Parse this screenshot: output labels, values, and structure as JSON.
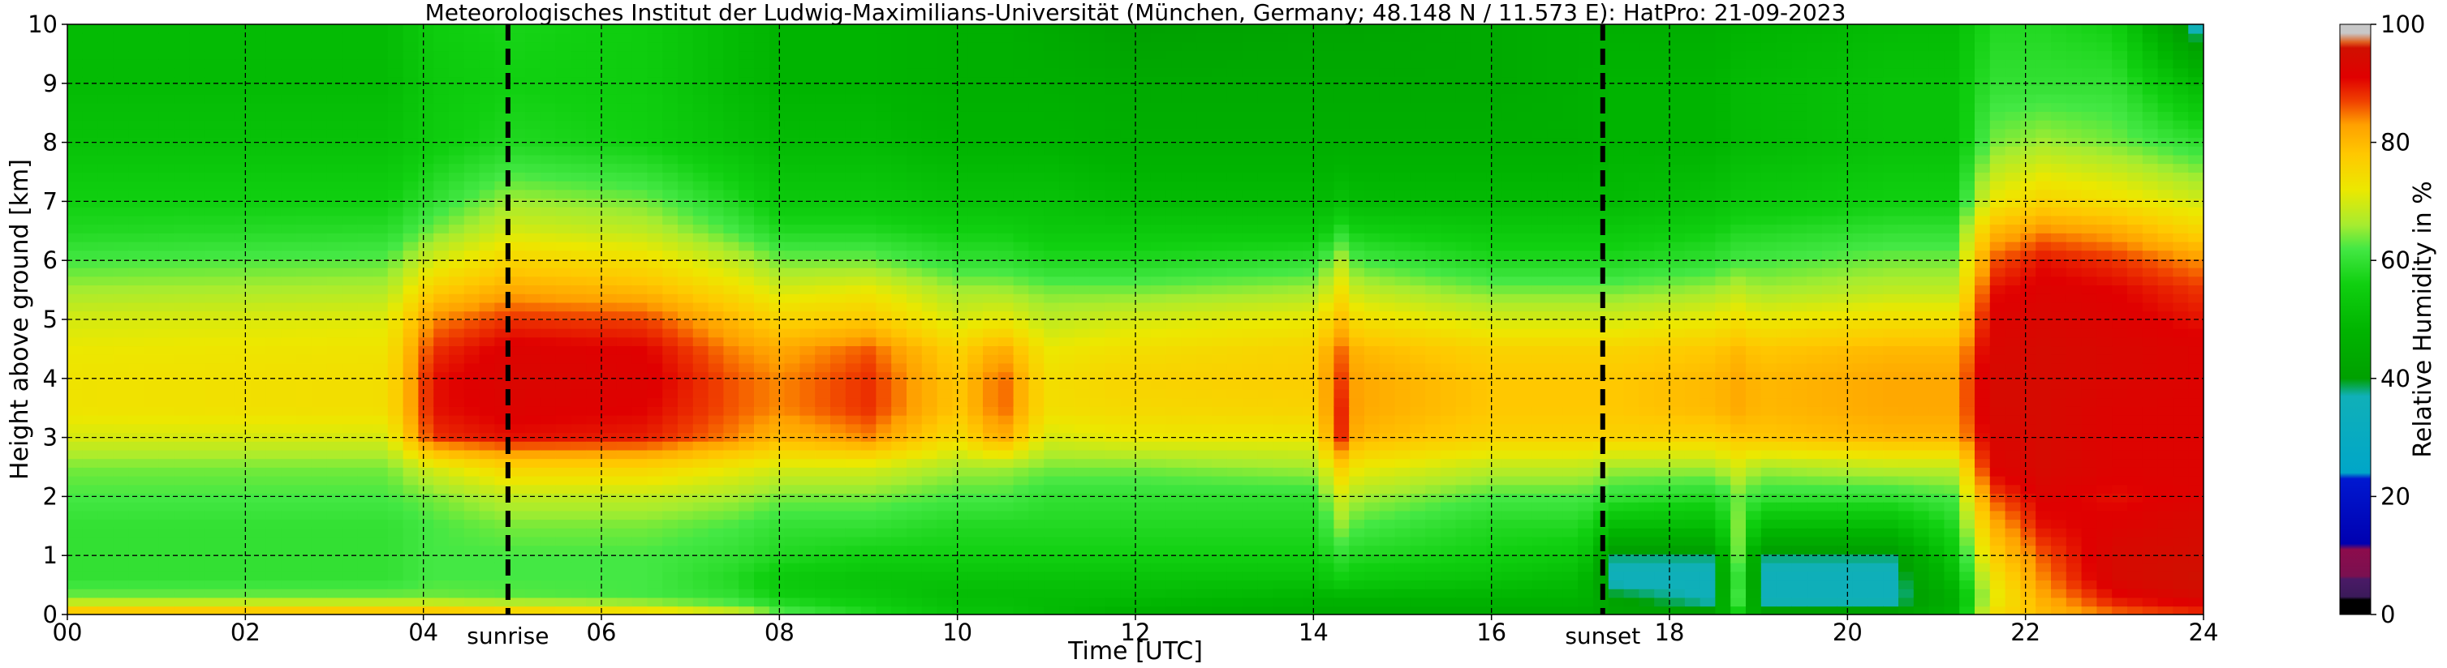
{
  "chart_data": {
    "type": "heatmap",
    "title": "Meteorologisches Institut der Ludwig-Maximilians-Universität (München, Germany; 48.148 N / 11.573 E):    HatPro: 21-09-2023",
    "xlabel": "Time [UTC]",
    "ylabel": "Height above ground [km]",
    "xlim": [
      0,
      24
    ],
    "ylim": [
      0,
      10
    ],
    "xticks": [
      "00",
      "02",
      "04",
      "06",
      "08",
      "10",
      "12",
      "14",
      "16",
      "18",
      "20",
      "22",
      "24"
    ],
    "yticks": [
      "0",
      "1",
      "2",
      "3",
      "4",
      "5",
      "6",
      "7",
      "8",
      "9",
      "10"
    ],
    "grid": true,
    "colorbar": {
      "label": "Relative Humidity in %",
      "ticks": [
        "0",
        "20",
        "40",
        "60",
        "80",
        "100"
      ],
      "range": [
        0,
        100
      ],
      "stops": [
        {
          "v": 0,
          "c": "#000000"
        },
        {
          "v": 2.5,
          "c": "#000000"
        },
        {
          "v": 3,
          "c": "#3b1a5a"
        },
        {
          "v": 6,
          "c": "#4a1a66"
        },
        {
          "v": 6.5,
          "c": "#7a1050"
        },
        {
          "v": 11,
          "c": "#8c0c4c"
        },
        {
          "v": 12,
          "c": "#0000b0"
        },
        {
          "v": 23,
          "c": "#0018d0"
        },
        {
          "v": 24,
          "c": "#00a6c8"
        },
        {
          "v": 37,
          "c": "#10b0b8"
        },
        {
          "v": 40,
          "c": "#00a000"
        },
        {
          "v": 48,
          "c": "#00b400"
        },
        {
          "v": 56,
          "c": "#10d010"
        },
        {
          "v": 62,
          "c": "#44e844"
        },
        {
          "v": 66,
          "c": "#a6ec30"
        },
        {
          "v": 72,
          "c": "#ece800"
        },
        {
          "v": 78,
          "c": "#ffc800"
        },
        {
          "v": 83,
          "c": "#ffa000"
        },
        {
          "v": 87,
          "c": "#f04000"
        },
        {
          "v": 91,
          "c": "#e00000"
        },
        {
          "v": 96,
          "c": "#d01000"
        },
        {
          "v": 97,
          "c": "#e06020"
        },
        {
          "v": 98.5,
          "c": "#c8c8c8"
        },
        {
          "v": 100,
          "c": "#c8c8c8"
        }
      ]
    },
    "events": [
      {
        "label": "sunrise",
        "time": 4.95
      },
      {
        "label": "sunset",
        "time": 17.25
      }
    ],
    "time_nodes": [
      0,
      3.6,
      4.1,
      5,
      6.5,
      7.5,
      8,
      9,
      10,
      10.5,
      11,
      12,
      14,
      14.2,
      14.35,
      14.5,
      16,
      17,
      17.4,
      18.5,
      18.8,
      19.0,
      20.5,
      21.2,
      21.6,
      22.2,
      23,
      23.9,
      24
    ],
    "height_nodes": [
      0,
      0.15,
      0.3,
      0.6,
      1,
      1.5,
      2,
      2.5,
      3,
      3.5,
      4,
      4.5,
      5,
      5.5,
      6,
      6.5,
      7,
      8,
      9,
      10
    ],
    "rh_profiles": [
      [
        82,
        72,
        64,
        60,
        60,
        60,
        62,
        64,
        70,
        73,
        73,
        72,
        70,
        66,
        62,
        58,
        56,
        52,
        50,
        50
      ],
      [
        82,
        72,
        64,
        60,
        60,
        60,
        62,
        64,
        70,
        74,
        74,
        73,
        71,
        67,
        63,
        59,
        56,
        52,
        50,
        50
      ],
      [
        82,
        72,
        64,
        62,
        62,
        62,
        64,
        70,
        88,
        90,
        90,
        88,
        84,
        77,
        70,
        64,
        60,
        55,
        54,
        55
      ],
      [
        80,
        70,
        63,
        62,
        62,
        64,
        68,
        76,
        90,
        92,
        93,
        92,
        88,
        82,
        76,
        70,
        66,
        58,
        56,
        57
      ],
      [
        78,
        68,
        62,
        62,
        62,
        64,
        68,
        76,
        89,
        91,
        92,
        91,
        87,
        80,
        74,
        68,
        64,
        56,
        55,
        55
      ],
      [
        72,
        64,
        60,
        58,
        60,
        62,
        66,
        72,
        84,
        86,
        86,
        84,
        80,
        74,
        68,
        62,
        58,
        52,
        50,
        50
      ],
      [
        64,
        60,
        56,
        54,
        58,
        60,
        64,
        70,
        80,
        84,
        84,
        82,
        76,
        70,
        64,
        58,
        54,
        50,
        48,
        48
      ],
      [
        58,
        56,
        54,
        52,
        56,
        60,
        64,
        70,
        84,
        88,
        88,
        86,
        78,
        72,
        64,
        58,
        54,
        50,
        48,
        48
      ],
      [
        52,
        52,
        50,
        52,
        56,
        58,
        62,
        66,
        74,
        78,
        78,
        76,
        70,
        66,
        60,
        56,
        52,
        48,
        46,
        46
      ],
      [
        52,
        52,
        50,
        52,
        56,
        58,
        62,
        66,
        82,
        86,
        86,
        82,
        72,
        66,
        60,
        56,
        52,
        48,
        46,
        46
      ],
      [
        50,
        50,
        50,
        52,
        56,
        58,
        60,
        64,
        70,
        74,
        74,
        72,
        68,
        64,
        58,
        54,
        52,
        48,
        46,
        44
      ],
      [
        46,
        48,
        50,
        52,
        56,
        58,
        60,
        64,
        72,
        75,
        76,
        74,
        70,
        64,
        58,
        54,
        50,
        46,
        44,
        40
      ],
      [
        44,
        46,
        48,
        52,
        56,
        58,
        60,
        66,
        72,
        76,
        77,
        76,
        72,
        66,
        60,
        54,
        50,
        46,
        44,
        42
      ],
      [
        44,
        46,
        48,
        54,
        58,
        62,
        66,
        72,
        82,
        84,
        84,
        82,
        76,
        70,
        64,
        56,
        50,
        46,
        44,
        42
      ],
      [
        44,
        46,
        48,
        56,
        60,
        66,
        70,
        78,
        90,
        90,
        88,
        86,
        80,
        74,
        68,
        60,
        52,
        46,
        44,
        42
      ],
      [
        44,
        46,
        48,
        54,
        58,
        62,
        66,
        72,
        80,
        82,
        82,
        80,
        74,
        68,
        62,
        56,
        50,
        46,
        44,
        42
      ],
      [
        44,
        46,
        48,
        52,
        56,
        58,
        62,
        68,
        76,
        78,
        78,
        76,
        70,
        64,
        58,
        54,
        50,
        46,
        44,
        44
      ],
      [
        44,
        46,
        48,
        50,
        54,
        58,
        62,
        68,
        76,
        78,
        78,
        76,
        70,
        64,
        58,
        54,
        50,
        46,
        46,
        46
      ],
      [
        42,
        42,
        40,
        36,
        38,
        50,
        60,
        66,
        76,
        78,
        78,
        76,
        70,
        64,
        58,
        54,
        50,
        48,
        48,
        46
      ],
      [
        42,
        38,
        36,
        36,
        38,
        50,
        58,
        66,
        76,
        80,
        80,
        78,
        72,
        66,
        60,
        56,
        52,
        48,
        48,
        46
      ],
      [
        54,
        62,
        64,
        62,
        66,
        66,
        64,
        70,
        78,
        82,
        82,
        80,
        74,
        68,
        62,
        58,
        54,
        50,
        50,
        48
      ],
      [
        42,
        38,
        36,
        36,
        38,
        50,
        60,
        66,
        78,
        80,
        80,
        78,
        72,
        66,
        62,
        58,
        54,
        50,
        50,
        48
      ],
      [
        42,
        38,
        36,
        36,
        38,
        50,
        60,
        68,
        80,
        82,
        82,
        80,
        74,
        68,
        64,
        60,
        56,
        52,
        52,
        50
      ],
      [
        48,
        46,
        46,
        50,
        54,
        58,
        62,
        68,
        80,
        82,
        82,
        80,
        74,
        68,
        64,
        60,
        56,
        52,
        52,
        50
      ],
      [
        74,
        72,
        70,
        72,
        76,
        80,
        86,
        92,
        93,
        94,
        94,
        93,
        92,
        90,
        86,
        80,
        72,
        64,
        60,
        58
      ],
      [
        80,
        80,
        82,
        84,
        86,
        90,
        92,
        94,
        94,
        94,
        94,
        94,
        93,
        92,
        90,
        84,
        76,
        66,
        60,
        58
      ],
      [
        84,
        88,
        90,
        94,
        94,
        92,
        90,
        92,
        92,
        92,
        93,
        93,
        92,
        91,
        88,
        82,
        74,
        64,
        60,
        56
      ],
      [
        88,
        90,
        94,
        96,
        95,
        94,
        92,
        92,
        92,
        92,
        92,
        92,
        90,
        88,
        84,
        76,
        70,
        60,
        50,
        36
      ],
      [
        88,
        90,
        94,
        96,
        95,
        94,
        92,
        92,
        92,
        92,
        92,
        92,
        90,
        88,
        84,
        76,
        70,
        60,
        50,
        36
      ]
    ]
  }
}
